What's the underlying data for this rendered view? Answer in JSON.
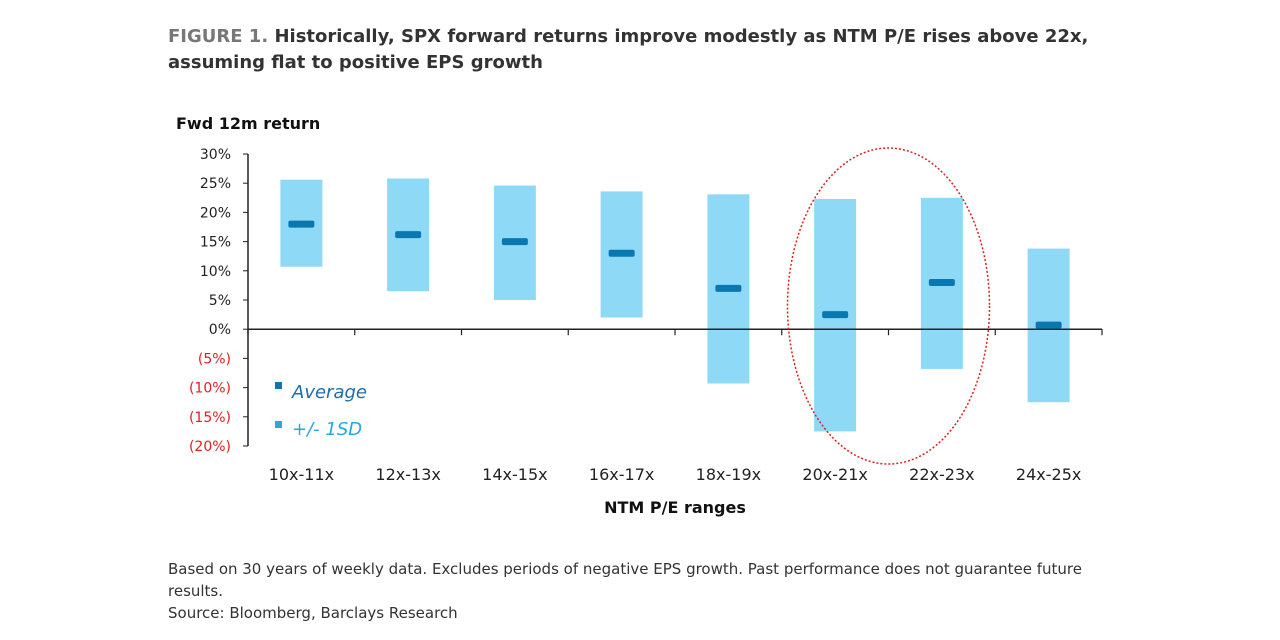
{
  "title": {
    "label": "FIGURE 1.",
    "text": "Historically, SPX forward returns improve modestly as NTM P/E rises above 22x, assuming flat to positive EPS growth"
  },
  "footnote": "Based on 30 years of weekly data. Excludes periods of negative EPS growth. Past performance does not guarantee future results.",
  "source": "Source: Bloomberg, Barclays Research",
  "colors": {
    "band": "#8ED9F6",
    "average": "#0A78B0",
    "negative_label": "#E0201E",
    "legend_avg_text": "#1E6EA8",
    "legend_sd_text": "#27A8DF",
    "highlight": "#E02020"
  },
  "chart_data": {
    "type": "range-bar",
    "ylabel": "Fwd 12m return",
    "xlabel": "NTM P/E ranges",
    "ylim": [
      -20,
      30
    ],
    "yticks": [
      30,
      25,
      20,
      15,
      10,
      5,
      0,
      -5,
      -10,
      -15,
      -20
    ],
    "ytick_labels": [
      "30%",
      "25%",
      "20%",
      "15%",
      "10%",
      "5%",
      "0%",
      "(5%)",
      "(10%)",
      "(15%)",
      "(20%)"
    ],
    "categories": [
      "10x-11x",
      "12x-13x",
      "14x-15x",
      "16x-17x",
      "18x-19x",
      "20x-21x",
      "22x-23x",
      "24x-25x"
    ],
    "series": [
      {
        "name": "Average",
        "values": [
          18.0,
          16.2,
          15.0,
          13.0,
          7.0,
          2.5,
          8.0,
          0.7
        ]
      },
      {
        "name": "+/- 1SD",
        "low": [
          10.7,
          6.5,
          5.0,
          2.0,
          -9.3,
          -17.5,
          -6.8,
          -12.5
        ],
        "high": [
          25.6,
          25.8,
          24.6,
          23.6,
          23.1,
          22.3,
          22.5,
          13.8
        ]
      }
    ],
    "legend": [
      {
        "label": "Average",
        "marker": "average"
      },
      {
        "label": "+/- 1SD",
        "marker": "band"
      }
    ],
    "highlight_category": "20x-21x"
  }
}
